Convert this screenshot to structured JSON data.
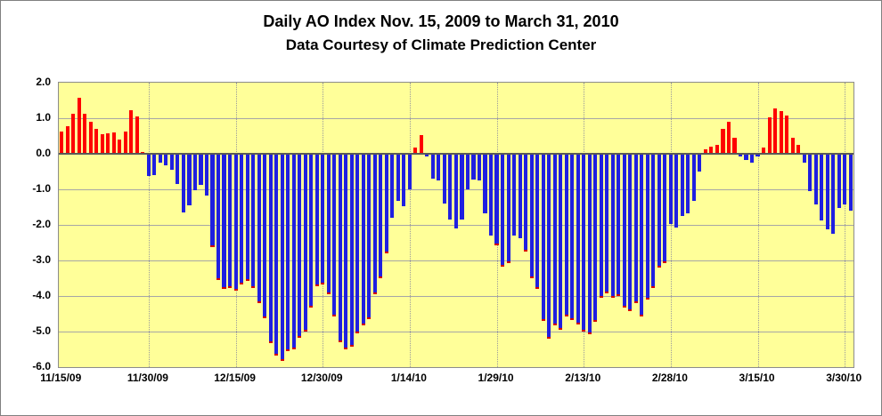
{
  "window": {
    "background": "#FFFFFF",
    "border_color": "#808080"
  },
  "chart_data": {
    "type": "bar",
    "title": "Daily AO Index Nov. 15, 2009 to March 31, 2010",
    "subtitle": "Data Courtesy of Climate Prediction Center",
    "xlabel": "",
    "ylabel": "",
    "ylim": [
      -6.0,
      2.0
    ],
    "y_tick_step": 1.0,
    "y_ticks": [
      "2.0",
      "1.0",
      "0.0",
      "-1.0",
      "-2.0",
      "-3.0",
      "-4.0",
      "-5.0",
      "-6.0"
    ],
    "x_ticks": [
      {
        "day": 0,
        "label": "11/15/09"
      },
      {
        "day": 15,
        "label": "11/30/09"
      },
      {
        "day": 30,
        "label": "12/15/09"
      },
      {
        "day": 45,
        "label": "12/30/09"
      },
      {
        "day": 60,
        "label": "1/14/10"
      },
      {
        "day": 75,
        "label": "1/29/10"
      },
      {
        "day": 90,
        "label": "2/13/10"
      },
      {
        "day": 105,
        "label": "2/28/10"
      },
      {
        "day": 120,
        "label": "3/15/10"
      },
      {
        "day": 135,
        "label": "3/30/10"
      }
    ],
    "grid": {
      "horizontal": true,
      "vertical_dotted": true
    },
    "legend": "none",
    "colors": {
      "positive_bar": "#FE0000",
      "negative_bar": "#1F1FE0",
      "negative_bar_tip": "#D40000",
      "plot_background": "#FFFF99",
      "h_gridline": "#A6A6A6",
      "v_gridline": "#9B9B9B",
      "zero_axis": "#595959",
      "plot_border": "#8C8C8C",
      "text": "#000000"
    },
    "series": [
      {
        "name": "Daily AO Index",
        "dates": [
          "11/15/09",
          "11/16/09",
          "11/17/09",
          "11/18/09",
          "11/19/09",
          "11/20/09",
          "11/21/09",
          "11/22/09",
          "11/23/09",
          "11/24/09",
          "11/25/09",
          "11/26/09",
          "11/27/09",
          "11/28/09",
          "11/29/09",
          "11/30/09",
          "12/1/09",
          "12/2/09",
          "12/3/09",
          "12/4/09",
          "12/5/09",
          "12/6/09",
          "12/7/09",
          "12/8/09",
          "12/9/09",
          "12/10/09",
          "12/11/09",
          "12/12/09",
          "12/13/09",
          "12/14/09",
          "12/15/09",
          "12/16/09",
          "12/17/09",
          "12/18/09",
          "12/19/09",
          "12/20/09",
          "12/21/09",
          "12/22/09",
          "12/23/09",
          "12/24/09",
          "12/25/09",
          "12/26/09",
          "12/27/09",
          "12/28/09",
          "12/29/09",
          "12/30/09",
          "12/31/09",
          "1/1/10",
          "1/2/10",
          "1/3/10",
          "1/4/10",
          "1/5/10",
          "1/6/10",
          "1/7/10",
          "1/8/10",
          "1/9/10",
          "1/10/10",
          "1/11/10",
          "1/12/10",
          "1/13/10",
          "1/14/10",
          "1/15/10",
          "1/16/10",
          "1/17/10",
          "1/18/10",
          "1/19/10",
          "1/20/10",
          "1/21/10",
          "1/22/10",
          "1/23/10",
          "1/24/10",
          "1/25/10",
          "1/26/10",
          "1/27/10",
          "1/28/10",
          "1/29/10",
          "1/30/10",
          "1/31/10",
          "2/1/10",
          "2/2/10",
          "2/3/10",
          "2/4/10",
          "2/5/10",
          "2/6/10",
          "2/7/10",
          "2/8/10",
          "2/9/10",
          "2/10/10",
          "2/11/10",
          "2/12/10",
          "2/13/10",
          "2/14/10",
          "2/15/10",
          "2/16/10",
          "2/17/10",
          "2/18/10",
          "2/19/10",
          "2/20/10",
          "2/21/10",
          "2/22/10",
          "2/23/10",
          "2/24/10",
          "2/25/10",
          "2/26/10",
          "2/27/10",
          "2/28/10",
          "3/1/10",
          "3/2/10",
          "3/3/10",
          "3/4/10",
          "3/5/10",
          "3/6/10",
          "3/7/10",
          "3/8/10",
          "3/9/10",
          "3/10/10",
          "3/11/10",
          "3/12/10",
          "3/13/10",
          "3/14/10",
          "3/15/10",
          "3/16/10",
          "3/17/10",
          "3/18/10",
          "3/19/10",
          "3/20/10",
          "3/21/10",
          "3/22/10",
          "3/23/10",
          "3/24/10",
          "3/25/10",
          "3/26/10",
          "3/27/10",
          "3/28/10",
          "3/29/10",
          "3/30/10",
          "3/31/10"
        ],
        "values": [
          0.63,
          0.77,
          1.12,
          1.57,
          1.12,
          0.9,
          0.7,
          0.56,
          0.58,
          0.6,
          0.4,
          0.63,
          1.23,
          1.04,
          0.06,
          -0.62,
          -0.6,
          -0.25,
          -0.33,
          -0.45,
          -0.84,
          -1.65,
          -1.44,
          -1.03,
          -0.87,
          -1.18,
          -2.62,
          -3.56,
          -3.8,
          -3.78,
          -3.84,
          -3.68,
          -3.58,
          -3.77,
          -4.2,
          -4.63,
          -5.32,
          -5.67,
          -5.82,
          -5.54,
          -5.5,
          -5.17,
          -5.0,
          -4.33,
          -3.73,
          -3.68,
          -3.96,
          -4.58,
          -5.29,
          -5.5,
          -5.42,
          -5.05,
          -4.83,
          -4.65,
          -3.96,
          -3.5,
          -2.79,
          -1.79,
          -1.33,
          -1.48,
          -1.0,
          0.17,
          0.53,
          -0.07,
          -0.7,
          -0.75,
          -1.4,
          -1.85,
          -2.1,
          -1.85,
          -1.0,
          -0.73,
          -0.75,
          -1.68,
          -2.3,
          -2.58,
          -3.18,
          -3.07,
          -2.29,
          -2.37,
          -2.75,
          -3.5,
          -3.79,
          -4.7,
          -5.2,
          -4.83,
          -4.96,
          -4.58,
          -4.67,
          -4.79,
          -5.0,
          -5.08,
          -4.73,
          -4.04,
          -3.93,
          -4.04,
          -4.0,
          -4.33,
          -4.42,
          -4.2,
          -4.57,
          -4.1,
          -3.77,
          -3.2,
          -3.07,
          -1.98,
          -2.07,
          -1.75,
          -1.68,
          -1.33,
          -0.5,
          0.12,
          0.21,
          0.25,
          0.71,
          0.9,
          0.46,
          -0.07,
          -0.17,
          -0.25,
          -0.07,
          0.17,
          1.02,
          1.27,
          1.21,
          1.07,
          0.46,
          0.25,
          -0.25,
          -1.04,
          -1.42,
          -1.87,
          -2.12,
          -2.25,
          -1.52,
          -1.43,
          -1.6
        ]
      }
    ]
  }
}
